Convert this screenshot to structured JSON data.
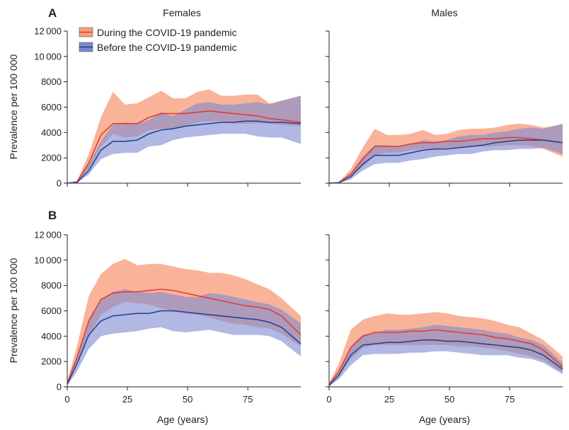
{
  "figure": {
    "col_titles": [
      "Females",
      "Males"
    ],
    "row_labels": [
      "A",
      "B"
    ],
    "xlabel": "Age (years)",
    "ylabel": "Prevalence per 100 000"
  },
  "legend": {
    "during": "During the COVID-19 pandemic",
    "before": "Before the COVID-19 pandemic"
  },
  "colors": {
    "during_line": "#e8372c",
    "during_band": "#f7a07f",
    "before_line": "#1f3f8c",
    "before_band": "#7b88d1"
  },
  "chart_data": [
    {
      "id": "A-Females",
      "type": "area",
      "ylim": [
        0,
        12000
      ],
      "xlim": [
        0,
        97
      ],
      "yticks": [
        "0",
        "2000",
        "4000",
        "6000",
        "8000",
        "10000",
        "12000"
      ],
      "xticks": [
        "0",
        "25",
        "50",
        "75"
      ],
      "x": [
        0,
        4,
        9,
        14,
        19,
        24,
        29,
        34,
        39,
        44,
        49,
        54,
        59,
        64,
        69,
        74,
        79,
        84,
        89,
        97
      ],
      "series": [
        {
          "name": "During the COVID-19 pandemic",
          "values": [
            0,
            100,
            1600,
            3800,
            4700,
            4700,
            4700,
            5200,
            5500,
            5500,
            5500,
            5600,
            5700,
            5600,
            5500,
            5400,
            5300,
            5100,
            5000,
            4800
          ],
          "lower": [
            0,
            50,
            1100,
            2900,
            3900,
            3600,
            3700,
            4200,
            4300,
            4300,
            4500,
            4800,
            4900,
            4900,
            4700,
            4700,
            4700,
            4700,
            4600,
            4500
          ],
          "upper": [
            0,
            150,
            2300,
            5200,
            7200,
            6200,
            6300,
            6800,
            7300,
            6700,
            6700,
            7200,
            7400,
            6900,
            6900,
            7000,
            7000,
            6300,
            6500,
            6900
          ]
        },
        {
          "name": "Before the COVID-19 pandemic",
          "values": [
            0,
            50,
            1000,
            2600,
            3300,
            3300,
            3400,
            3900,
            4200,
            4300,
            4500,
            4600,
            4700,
            4800,
            4800,
            4900,
            4900,
            4800,
            4800,
            4700
          ],
          "lower": [
            0,
            20,
            700,
            1900,
            2300,
            2400,
            2400,
            2900,
            3000,
            3400,
            3600,
            3700,
            3800,
            3900,
            3900,
            3900,
            3700,
            3600,
            3600,
            3100
          ],
          "upper": [
            0,
            100,
            1500,
            3300,
            4600,
            4800,
            4700,
            5000,
            5600,
            5300,
            5800,
            6300,
            6400,
            6200,
            6200,
            6300,
            6400,
            6200,
            6500,
            6900
          ]
        }
      ]
    },
    {
      "id": "A-Males",
      "type": "area",
      "ylim": [
        0,
        12000
      ],
      "xlim": [
        0,
        97
      ],
      "yticks": [
        "0",
        "2000",
        "4000",
        "6000",
        "8000",
        "10000",
        "12000"
      ],
      "xticks": [
        "0",
        "25",
        "50",
        "75"
      ],
      "x": [
        0,
        4,
        9,
        14,
        19,
        24,
        29,
        34,
        39,
        44,
        49,
        54,
        59,
        64,
        69,
        74,
        79,
        84,
        89,
        97
      ],
      "series": [
        {
          "name": "During the COVID-19 pandemic",
          "values": [
            0,
            50,
            700,
            1900,
            2900,
            2900,
            2900,
            3100,
            3200,
            3200,
            3300,
            3300,
            3400,
            3500,
            3500,
            3600,
            3600,
            3500,
            3400,
            3200
          ],
          "lower": [
            0,
            30,
            500,
            1300,
            2200,
            2400,
            2400,
            2600,
            2700,
            2700,
            2800,
            2800,
            2900,
            2900,
            2900,
            3000,
            3000,
            2900,
            2700,
            2100
          ],
          "upper": [
            0,
            80,
            1100,
            2800,
            4300,
            3800,
            3800,
            3900,
            4200,
            3800,
            3900,
            4200,
            4300,
            4300,
            4400,
            4600,
            4700,
            4600,
            4400,
            4600
          ]
        },
        {
          "name": "Before the COVID-19 pandemic",
          "values": [
            0,
            30,
            500,
            1500,
            2200,
            2200,
            2200,
            2400,
            2600,
            2700,
            2700,
            2800,
            2900,
            3000,
            3200,
            3300,
            3400,
            3400,
            3400,
            3200
          ],
          "lower": [
            0,
            15,
            300,
            1000,
            1500,
            1600,
            1600,
            1800,
            1900,
            2100,
            2200,
            2300,
            2300,
            2500,
            2600,
            2600,
            2700,
            2700,
            2800,
            2300
          ],
          "upper": [
            0,
            50,
            800,
            2100,
            3000,
            3000,
            2900,
            3100,
            3400,
            3300,
            3400,
            3700,
            3800,
            3800,
            4000,
            4100,
            4300,
            4400,
            4300,
            4700
          ]
        }
      ]
    },
    {
      "id": "B-Females",
      "type": "area",
      "ylim": [
        0,
        12000
      ],
      "xlim": [
        0,
        97
      ],
      "yticks": [
        "0",
        "2000",
        "4000",
        "6000",
        "8000",
        "10000",
        "12000"
      ],
      "xticks": [
        "0",
        "25",
        "50",
        "75"
      ],
      "x": [
        0,
        4,
        9,
        14,
        19,
        24,
        29,
        34,
        39,
        44,
        49,
        54,
        59,
        64,
        69,
        74,
        79,
        84,
        89,
        97
      ],
      "series": [
        {
          "name": "During the COVID-19 pandemic",
          "values": [
            300,
            2300,
            5200,
            6900,
            7400,
            7500,
            7500,
            7600,
            7700,
            7600,
            7400,
            7200,
            7000,
            6800,
            6600,
            6400,
            6300,
            6100,
            5600,
            4100
          ],
          "lower": [
            200,
            1800,
            4000,
            5700,
            6300,
            6700,
            6600,
            6500,
            6200,
            6000,
            5800,
            5700,
            5500,
            5200,
            5000,
            4900,
            4700,
            4600,
            4200,
            3200
          ],
          "upper": [
            400,
            3200,
            7200,
            8900,
            9700,
            10100,
            9600,
            9700,
            9700,
            9500,
            9300,
            9200,
            9000,
            9000,
            8800,
            8500,
            8100,
            7700,
            7000,
            5600
          ]
        },
        {
          "name": "Before the COVID-19 pandemic",
          "values": [
            200,
            1800,
            4100,
            5200,
            5600,
            5700,
            5800,
            5800,
            6000,
            6000,
            5900,
            5800,
            5700,
            5600,
            5500,
            5400,
            5300,
            5100,
            4700,
            3400
          ],
          "lower": [
            100,
            1200,
            3000,
            4000,
            4200,
            4300,
            4400,
            4600,
            4700,
            4400,
            4300,
            4400,
            4500,
            4300,
            4100,
            4100,
            4100,
            4000,
            3600,
            2400
          ],
          "upper": [
            300,
            2400,
            5400,
            6900,
            7500,
            7700,
            7500,
            7400,
            7500,
            7300,
            7100,
            7100,
            7400,
            7300,
            7100,
            6900,
            6700,
            6500,
            6100,
            5000
          ]
        }
      ]
    },
    {
      "id": "B-Males",
      "type": "area",
      "ylim": [
        0,
        12000
      ],
      "xlim": [
        0,
        97
      ],
      "yticks": [
        "0",
        "2000",
        "4000",
        "6000",
        "8000",
        "10000",
        "12000"
      ],
      "xticks": [
        "0",
        "25",
        "50",
        "75"
      ],
      "x": [
        0,
        4,
        9,
        14,
        19,
        24,
        29,
        34,
        39,
        44,
        49,
        54,
        59,
        64,
        69,
        74,
        79,
        84,
        89,
        97
      ],
      "series": [
        {
          "name": "During the COVID-19 pandemic",
          "values": [
            200,
            1200,
            3100,
            4000,
            4300,
            4300,
            4300,
            4400,
            4400,
            4500,
            4400,
            4300,
            4200,
            4100,
            3900,
            3800,
            3600,
            3400,
            2900,
            1600
          ],
          "lower": [
            100,
            800,
            2200,
            3100,
            3300,
            3300,
            3300,
            3300,
            3300,
            3300,
            3300,
            3200,
            3200,
            3100,
            3000,
            2800,
            2600,
            2400,
            2100,
            1100
          ],
          "upper": [
            300,
            1800,
            4500,
            5300,
            5600,
            5800,
            5700,
            5700,
            5800,
            5900,
            5800,
            5600,
            5500,
            5400,
            5200,
            4900,
            4700,
            4200,
            3700,
            2400
          ]
        },
        {
          "name": "Before the COVID-19 pandemic",
          "values": [
            100,
            900,
            2500,
            3300,
            3400,
            3500,
            3500,
            3600,
            3700,
            3700,
            3600,
            3600,
            3500,
            3400,
            3300,
            3200,
            3100,
            2900,
            2500,
            1400
          ],
          "lower": [
            50,
            600,
            1700,
            2500,
            2600,
            2600,
            2600,
            2700,
            2700,
            2800,
            2800,
            2700,
            2600,
            2500,
            2500,
            2500,
            2300,
            2200,
            1900,
            1000
          ],
          "upper": [
            150,
            1200,
            3200,
            4100,
            4300,
            4500,
            4500,
            4600,
            4700,
            4900,
            4800,
            4700,
            4600,
            4500,
            4300,
            4200,
            3900,
            3700,
            3300,
            1900
          ]
        }
      ]
    }
  ]
}
